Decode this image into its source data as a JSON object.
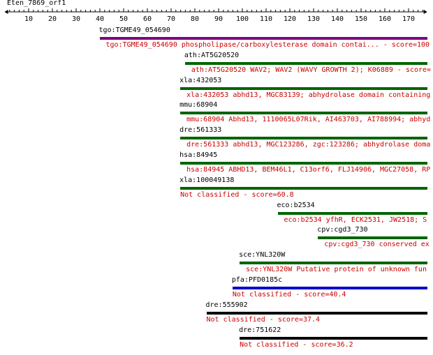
{
  "query": {
    "name": "Eten_7869_orf1",
    "length": 178
  },
  "ruler": {
    "ticks": [
      10,
      20,
      30,
      40,
      50,
      60,
      70,
      80,
      90,
      100,
      110,
      120,
      130,
      140,
      150,
      160,
      170
    ]
  },
  "hits": [
    {
      "id": "tgo:TGME49_054690",
      "start": 40,
      "end": 178,
      "color": "#800080",
      "description": "tgo:TGME49_054690  phospholipase/carboxylesterase domain contai... - score=100"
    },
    {
      "id": "ath:AT5G20520",
      "start": 76,
      "end": 178,
      "color": "#006400",
      "description": "ath:AT5G20520  WAV2; WAV2 (WAVY GROWTH 2); K06889 - score="
    },
    {
      "id": "xla:432053",
      "start": 74,
      "end": 178,
      "color": "#006400",
      "description": "xla:432053  abhd13, MGC83139; abhydrolase domain containing"
    },
    {
      "id": "mmu:68904",
      "start": 74,
      "end": 178,
      "color": "#006400",
      "description": "mmu:68904  Abhd13, 1110065L07Rik, AI463703, AI788994; abhyd"
    },
    {
      "id": "dre:561333",
      "start": 74,
      "end": 178,
      "color": "#006400",
      "description": "dre:561333  abhd13, MGC123286, zgc:123286; abhydrolase doma"
    },
    {
      "id": "hsa:84945",
      "start": 74,
      "end": 178,
      "color": "#006400",
      "description": "hsa:84945  ABHD13, BEM46L1, C13orf6, FLJ14906, MGC27058, RP"
    },
    {
      "id": "xla:100049138",
      "start": 74,
      "end": 178,
      "color": "#006400",
      "description": "Not classified - score=60.8"
    },
    {
      "id": "eco:b2534",
      "start": 115,
      "end": 178,
      "color": "#006400",
      "description": "eco:b2534  yfhR, ECK2531, JW2518; S"
    },
    {
      "id": "cpv:cgd3_730",
      "start": 132,
      "end": 178,
      "color": "#006400",
      "description": "cpv:cgd3_730  conserved ex"
    },
    {
      "id": "sce:YNL320W",
      "start": 99,
      "end": 178,
      "color": "#006400",
      "description": "sce:YNL320W  Putative protein of unknown fun"
    },
    {
      "id": "pfa:PFD0185c",
      "start": 96,
      "end": 178,
      "color": "#0000cc",
      "description": "Not classified - score=40.4"
    },
    {
      "id": "dre:555902",
      "start": 85,
      "end": 178,
      "color": "#000000",
      "description": "Not classified - score=37.4"
    },
    {
      "id": "dre:751622",
      "start": 99,
      "end": 178,
      "color": "#000000",
      "description": "Not classified - score=36.2"
    }
  ]
}
